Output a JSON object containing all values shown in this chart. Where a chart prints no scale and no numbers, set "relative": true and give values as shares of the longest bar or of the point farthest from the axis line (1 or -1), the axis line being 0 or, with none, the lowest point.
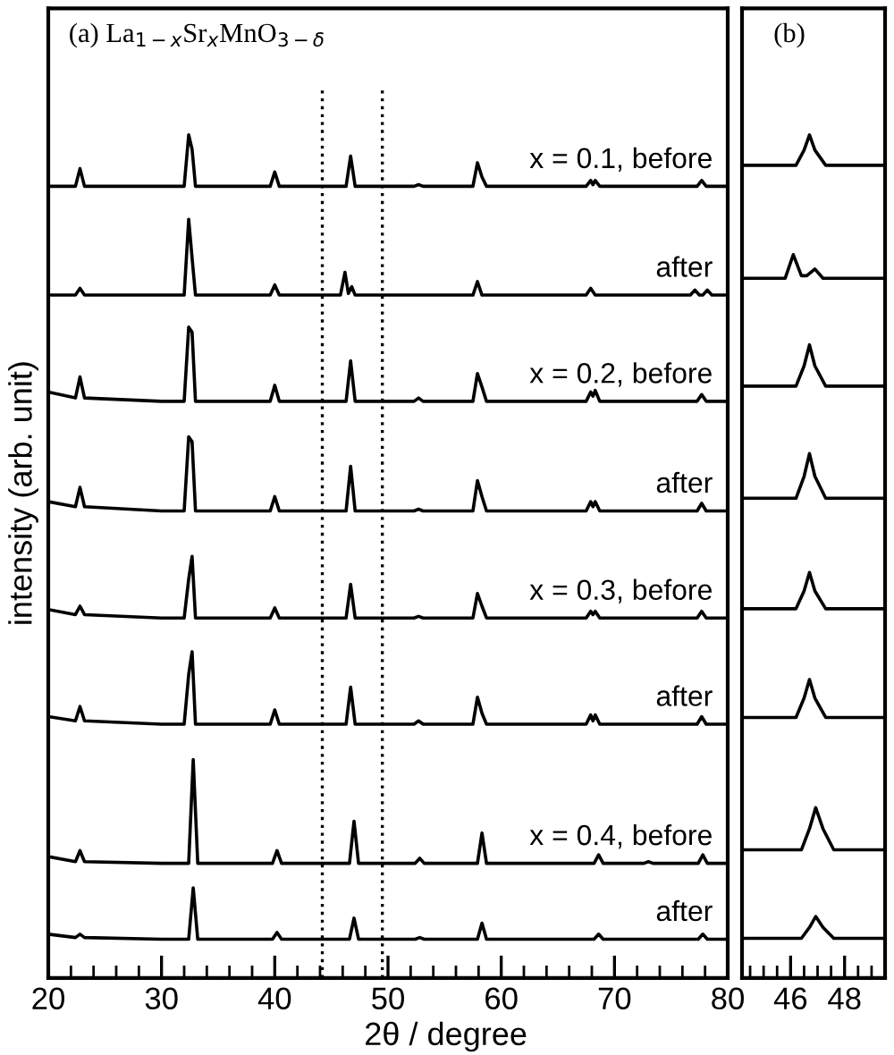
{
  "chart_data": [
    {
      "type": "line",
      "title": "(a) La$_{1−x}$Sr$_{x}$MnO$_{3−δ}$",
      "xlabel": "2θ / degree",
      "ylabel": "intensity (arb. unit)",
      "relative": true,
      "tick_labels": "x",
      "legend": false,
      "xlim": [
        20,
        80
      ],
      "xticks": [
        20,
        {
          "value": 22,
          "label": null
        },
        {
          "value": 24,
          "label": null
        },
        {
          "value": 26,
          "label": null
        },
        {
          "value": 28,
          "label": null
        },
        30,
        {
          "value": 32,
          "label": null
        },
        {
          "value": 34,
          "label": null
        },
        {
          "value": 36,
          "label": null
        },
        {
          "value": 38,
          "label": null
        },
        40,
        {
          "value": 42,
          "label": null
        },
        {
          "value": 44,
          "label": null
        },
        {
          "value": 46,
          "label": null
        },
        {
          "value": 48,
          "label": null
        },
        50,
        {
          "value": 52,
          "label": null
        },
        {
          "value": 54,
          "label": null
        },
        {
          "value": 56,
          "label": null
        },
        {
          "value": 58,
          "label": null
        },
        60,
        {
          "value": 62,
          "label": null
        },
        {
          "value": 64,
          "label": null
        },
        {
          "value": 66,
          "label": null
        },
        {
          "value": 68,
          "label": null
        },
        70,
        {
          "value": 72,
          "label": null
        },
        {
          "value": 74,
          "label": null
        },
        {
          "value": 76,
          "label": null
        },
        {
          "value": 78,
          "label": null
        },
        80
      ],
      "ref_lines": [
        {
          "axis": "x",
          "value": 44.2,
          "line_style": "dotted",
          "color": "#000000"
        },
        {
          "axis": "x",
          "value": 49.5,
          "line_style": "dotted",
          "color": "#000000"
        }
      ],
      "x": [
        20,
        22.4,
        22.8,
        23.2,
        30,
        32.0,
        32.4,
        32.7,
        33.0,
        39.6,
        40.0,
        40.4,
        46.3,
        46.7,
        47.1,
        52.3,
        52.7,
        53.1,
        57.5,
        57.9,
        58.3,
        58.7,
        67.5,
        67.9,
        68.1,
        68.3,
        68.7,
        77.3,
        77.7,
        78.1,
        80
      ],
      "series": [
        {
          "name": "x = 0.1, before",
          "color": "#000000",
          "values": [
            0.939,
            0.939,
            0.96,
            0.939,
            0.939,
            0.939,
            1.0,
            0.983,
            0.939,
            0.939,
            0.956,
            0.939,
            0.939,
            0.975,
            0.939,
            0.939,
            0.941,
            0.939,
            0.939,
            0.967,
            0.95,
            0.939,
            0.939,
            0.946,
            0.941,
            0.946,
            0.939,
            0.939,
            0.946,
            0.939,
            0.939
          ]
        },
        {
          "name": "after",
          "color": "#000000",
          "x": [
            20,
            22.4,
            22.8,
            23.2,
            32.0,
            32.4,
            32.7,
            33.0,
            39.6,
            40.0,
            40.4,
            45.8,
            46.2,
            46.5,
            46.8,
            47.1,
            57.5,
            57.9,
            58.3,
            67.5,
            67.9,
            68.3,
            76.7,
            77.1,
            77.5,
            77.8,
            78.2,
            78.6,
            80
          ],
          "values": [
            0.81,
            0.81,
            0.818,
            0.81,
            0.81,
            0.9,
            0.854,
            0.81,
            0.81,
            0.822,
            0.81,
            0.81,
            0.837,
            0.812,
            0.82,
            0.81,
            0.81,
            0.826,
            0.81,
            0.81,
            0.818,
            0.81,
            0.81,
            0.816,
            0.81,
            0.81,
            0.816,
            0.81,
            0.81
          ]
        },
        {
          "name": "x = 0.2, before",
          "color": "#000000",
          "values": [
            0.695,
            0.688,
            0.713,
            0.688,
            0.684,
            0.684,
            0.772,
            0.766,
            0.684,
            0.684,
            0.703,
            0.684,
            0.684,
            0.732,
            0.684,
            0.684,
            0.688,
            0.684,
            0.684,
            0.717,
            0.701,
            0.684,
            0.684,
            0.695,
            0.69,
            0.697,
            0.684,
            0.684,
            0.692,
            0.684,
            0.684
          ]
        },
        {
          "name": "after",
          "color": "#000000",
          "values": [
            0.565,
            0.559,
            0.582,
            0.559,
            0.554,
            0.554,
            0.642,
            0.636,
            0.554,
            0.554,
            0.571,
            0.554,
            0.554,
            0.607,
            0.554,
            0.554,
            0.556,
            0.554,
            0.554,
            0.59,
            0.571,
            0.554,
            0.554,
            0.565,
            0.559,
            0.565,
            0.554,
            0.554,
            0.563,
            0.554,
            0.554
          ]
        },
        {
          "name": "x = 0.3, before",
          "color": "#000000",
          "values": [
            0.437,
            0.431,
            0.441,
            0.431,
            0.427,
            0.427,
            0.473,
            0.5,
            0.427,
            0.427,
            0.439,
            0.427,
            0.427,
            0.467,
            0.427,
            0.427,
            0.429,
            0.427,
            0.427,
            0.456,
            0.441,
            0.427,
            0.427,
            0.435,
            0.431,
            0.435,
            0.427,
            0.427,
            0.435,
            0.427,
            0.427
          ]
        },
        {
          "name": "after",
          "color": "#000000",
          "values": [
            0.31,
            0.305,
            0.322,
            0.305,
            0.301,
            0.301,
            0.36,
            0.387,
            0.301,
            0.301,
            0.318,
            0.301,
            0.301,
            0.345,
            0.301,
            0.301,
            0.305,
            0.301,
            0.301,
            0.333,
            0.314,
            0.301,
            0.301,
            0.312,
            0.305,
            0.312,
            0.301,
            0.301,
            0.31,
            0.301,
            0.301
          ]
        },
        {
          "name": "x = 0.4, before",
          "color": "#000000",
          "x": [
            20,
            22.4,
            22.8,
            23.2,
            30,
            32.4,
            32.8,
            33.2,
            39.8,
            40.2,
            40.6,
            46.6,
            47.0,
            47.4,
            52.4,
            52.8,
            53.2,
            57.9,
            58.3,
            58.7,
            68.2,
            68.6,
            69.0,
            72.6,
            73.0,
            73.4,
            77.4,
            77.8,
            78.2,
            80
          ],
          "values": [
            0.144,
            0.138,
            0.151,
            0.138,
            0.136,
            0.136,
            0.259,
            0.136,
            0.136,
            0.151,
            0.136,
            0.136,
            0.186,
            0.136,
            0.136,
            0.142,
            0.136,
            0.136,
            0.172,
            0.136,
            0.136,
            0.146,
            0.136,
            0.136,
            0.138,
            0.136,
            0.136,
            0.146,
            0.136,
            0.136
          ]
        },
        {
          "name": "after",
          "color": "#000000",
          "x": [
            20,
            22.4,
            22.8,
            23.2,
            30,
            32.4,
            32.8,
            33.2,
            39.8,
            40.2,
            40.6,
            46.6,
            47.0,
            47.4,
            52.4,
            52.8,
            53.2,
            57.9,
            58.3,
            58.7,
            68.2,
            68.6,
            69.0,
            72.6,
            73.0,
            73.4,
            77.4,
            77.8,
            78.2,
            80
          ],
          "values": [
            0.052,
            0.048,
            0.052,
            0.048,
            0.046,
            0.046,
            0.107,
            0.046,
            0.046,
            0.054,
            0.046,
            0.046,
            0.071,
            0.046,
            0.046,
            0.048,
            0.046,
            0.046,
            0.065,
            0.046,
            0.046,
            0.052,
            0.046,
            0.046,
            0.046,
            0.046,
            0.046,
            0.052,
            0.046,
            0.046
          ]
        }
      ]
    },
    {
      "type": "line",
      "title": "(b)",
      "relative": true,
      "tick_labels": "x",
      "legend": false,
      "xlim": [
        44.2,
        49.5
      ],
      "xticks": [
        {
          "value": 44.5,
          "label": null
        },
        {
          "value": 45,
          "label": null
        },
        {
          "value": 45.5,
          "label": null
        },
        46,
        {
          "value": 46.5,
          "label": null
        },
        {
          "value": 47,
          "label": null
        },
        {
          "value": 47.5,
          "label": null
        },
        48,
        {
          "value": 48.5,
          "label": null
        },
        {
          "value": 49,
          "label": null
        }
      ],
      "x": [
        44.2,
        46.2,
        46.5,
        46.7,
        46.9,
        47.3,
        49.5
      ],
      "series": [
        {
          "color": "#000000",
          "values": [
            0.964,
            0.964,
            0.982,
            1.0,
            0.982,
            0.964,
            0.964
          ]
        },
        {
          "color": "#000000",
          "x": [
            44.2,
            45.8,
            46.1,
            46.4,
            46.6,
            46.9,
            47.2,
            49.5
          ],
          "values": [
            0.83,
            0.83,
            0.858,
            0.833,
            0.833,
            0.841,
            0.83,
            0.83
          ]
        },
        {
          "color": "#000000",
          "values": [
            0.702,
            0.702,
            0.726,
            0.751,
            0.726,
            0.702,
            0.702
          ]
        },
        {
          "color": "#000000",
          "values": [
            0.569,
            0.569,
            0.595,
            0.622,
            0.595,
            0.569,
            0.569
          ]
        },
        {
          "color": "#000000",
          "values": [
            0.438,
            0.438,
            0.459,
            0.481,
            0.459,
            0.438,
            0.438
          ]
        },
        {
          "color": "#000000",
          "values": [
            0.309,
            0.309,
            0.332,
            0.354,
            0.332,
            0.309,
            0.309
          ]
        },
        {
          "color": "#000000",
          "x": [
            44.2,
            46.4,
            46.7,
            46.93,
            47.2,
            47.6,
            49.5
          ],
          "values": [
            0.152,
            0.152,
            0.177,
            0.202,
            0.177,
            0.152,
            0.152
          ]
        },
        {
          "color": "#000000",
          "x": [
            44.2,
            46.4,
            46.7,
            46.93,
            47.2,
            47.6,
            49.5
          ],
          "values": [
            0.047,
            0.047,
            0.06,
            0.073,
            0.06,
            0.047,
            0.047
          ]
        }
      ]
    }
  ]
}
